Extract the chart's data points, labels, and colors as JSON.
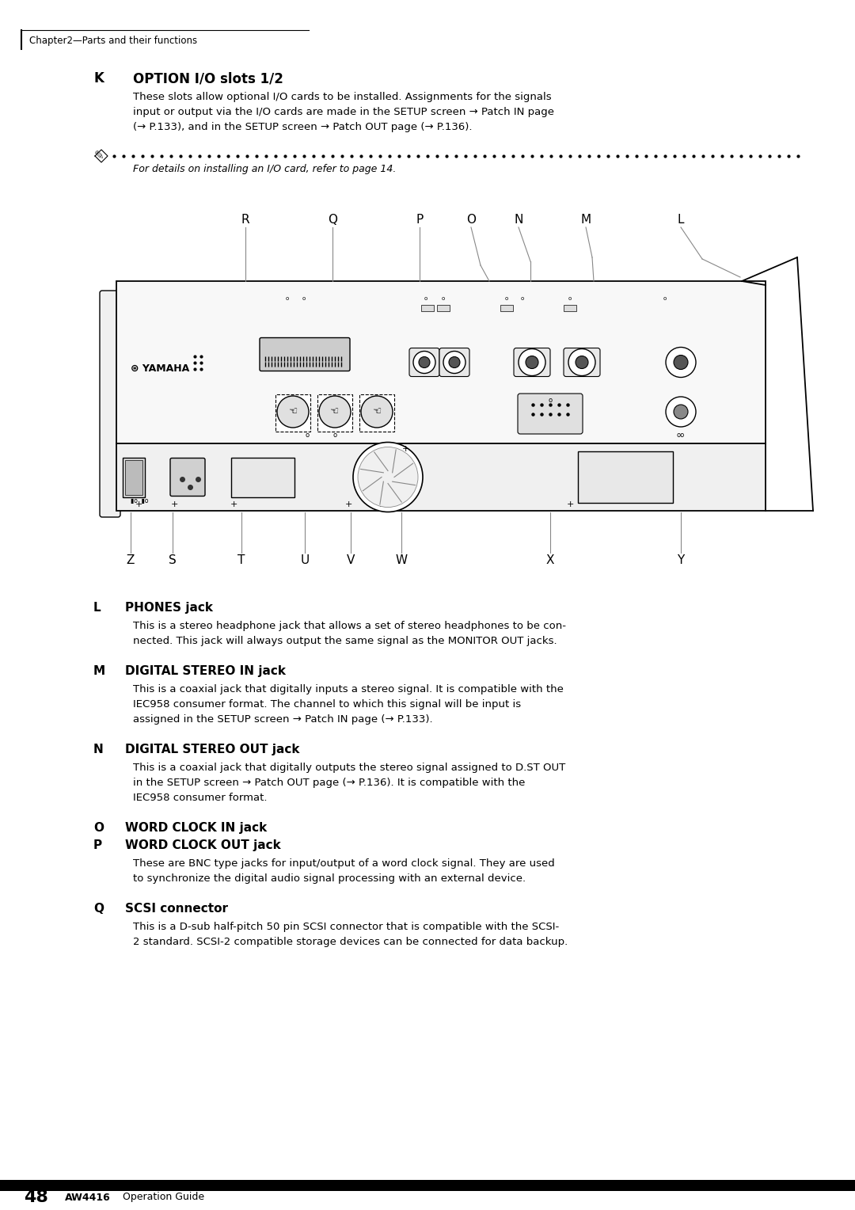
{
  "bg_color": "#ffffff",
  "page_width": 10.8,
  "page_height": 15.28,
  "header_text": "Chapter2—Parts and their functions",
  "section_K_label": "K",
  "section_K_title": "OPTION I/O slots 1/2",
  "section_K_body": [
    "These slots allow optional I/O cards to be installed. Assignments for the signals",
    "input or output via the I/O cards are made in the SETUP screen → Patch IN page",
    "(→ P.133), and in the SETUP screen → Patch OUT page (→ P.136)."
  ],
  "note_text": "For details on installing an I/O card, refer to page 14.",
  "section_L_label": "L",
  "section_L_title": "PHONES jack",
  "section_L_body": [
    "This is a stereo headphone jack that allows a set of stereo headphones to be con-",
    "nected. This jack will always output the same signal as the MONITOR OUT jacks."
  ],
  "section_M_label": "M",
  "section_M_title": "DIGITAL STEREO IN jack",
  "section_M_body": [
    "This is a coaxial jack that digitally inputs a stereo signal. It is compatible with the",
    "IEC958 consumer format. The channel to which this signal will be input is",
    "assigned in the SETUP screen → Patch IN page (→ P.133)."
  ],
  "section_N_label": "N",
  "section_N_title": "DIGITAL STEREO OUT jack",
  "section_N_body": [
    "This is a coaxial jack that digitally outputs the stereo signal assigned to D.ST OUT",
    "in the SETUP screen → Patch OUT page (→ P.136). It is compatible with the",
    "IEC958 consumer format."
  ],
  "section_O_label": "O",
  "section_O_title": "WORD CLOCK IN jack",
  "section_P_label": "P",
  "section_P_title": "WORD CLOCK OUT jack",
  "section_OP_body": [
    "These are BNC type jacks for input/output of a word clock signal. They are used",
    "to synchronize the digital audio signal processing with an external device."
  ],
  "section_Q_label": "Q",
  "section_Q_title": "SCSI connector",
  "section_Q_body": [
    "This is a D-sub half-pitch 50 pin SCSI connector that is compatible with the SCSI-",
    "2 standard. SCSI-2 compatible storage devices can be connected for data backup."
  ],
  "footer_page": "48",
  "footer_brand": "AW4416",
  "footer_text": "Operation Guide"
}
